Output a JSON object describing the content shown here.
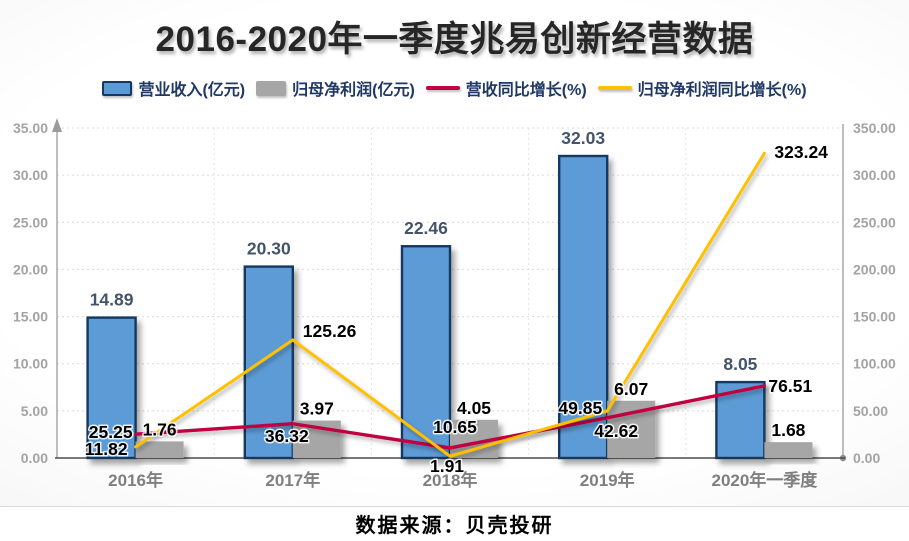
{
  "title": "2016-2020年一季度兆易创新经营数据",
  "source": "数据来源：贝壳投研",
  "chart_data": {
    "type": "combo-bar-line",
    "categories": [
      "2016年",
      "2017年",
      "2018年",
      "2019年",
      "2020年一季度"
    ],
    "series": [
      {
        "name": "营业收入(亿元)",
        "type": "bar",
        "axis": "left",
        "color": "#5B9BD5",
        "border_color": "#17375E",
        "values": [
          14.89,
          20.3,
          22.46,
          32.03,
          8.05
        ]
      },
      {
        "name": "归母净利润(亿元)",
        "type": "bar",
        "axis": "left",
        "color": "#A6A6A6",
        "values": [
          1.76,
          3.97,
          4.05,
          6.07,
          1.68
        ]
      },
      {
        "name": "营收同比增长(%)",
        "type": "line",
        "axis": "right",
        "color": "#C00040",
        "values": [
          25.25,
          36.32,
          10.65,
          42.62,
          76.51
        ]
      },
      {
        "name": "归母净利润同比增长(%)",
        "type": "line",
        "axis": "right",
        "color": "#FFC000",
        "values": [
          11.82,
          125.26,
          1.91,
          49.85,
          323.24
        ]
      }
    ],
    "left_axis": {
      "min": 0,
      "max": 35,
      "step": 5,
      "ticks": [
        "0.00",
        "5.00",
        "10.00",
        "15.00",
        "20.00",
        "25.00",
        "30.00",
        "35.00"
      ]
    },
    "right_axis": {
      "min": 0,
      "max": 350,
      "step": 50,
      "ticks": [
        "0.00",
        "50.00",
        "100.00",
        "150.00",
        "200.00",
        "250.00",
        "300.00",
        "350.00"
      ]
    },
    "grid": true,
    "legend_position": "top",
    "colors": {
      "bar_value_label": "#44546A",
      "line_value_label": "#000000",
      "tick_label": "#A3A3A3",
      "x_label": "#7F7F7F",
      "grid_line": "#D9D9D9",
      "axis_line": "#9B9B9B",
      "bottom_axis": "#4D4D4D"
    }
  }
}
